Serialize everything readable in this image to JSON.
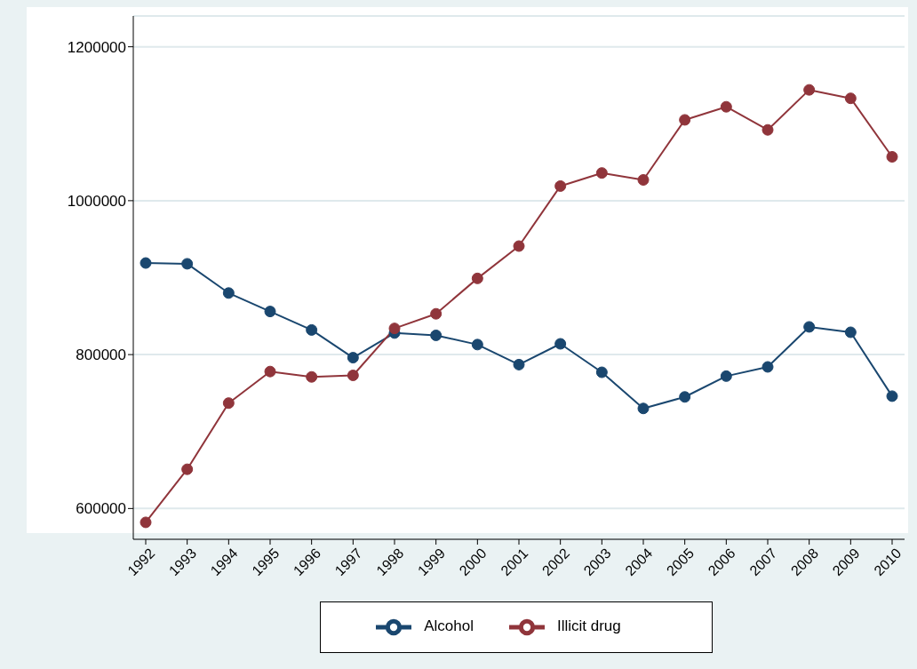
{
  "chart_data": {
    "type": "line",
    "x": [
      1992,
      1993,
      1994,
      1995,
      1996,
      1997,
      1998,
      1999,
      2000,
      2001,
      2002,
      2003,
      2004,
      2005,
      2006,
      2007,
      2008,
      2009,
      2010
    ],
    "series": [
      {
        "name": "Alcohol",
        "color": "#1a476f",
        "values": [
          919000,
          918000,
          880000,
          856000,
          832000,
          796000,
          828000,
          825000,
          813000,
          787000,
          814000,
          777000,
          730000,
          745000,
          772000,
          784000,
          836000,
          829000,
          746000
        ]
      },
      {
        "name": "Illicit drug",
        "color": "#90353b",
        "values": [
          582000,
          651000,
          737000,
          778000,
          771000,
          773000,
          834000,
          853000,
          899000,
          941000,
          1019000,
          1036000,
          1027000,
          1105000,
          1122000,
          1092000,
          1144000,
          1133000,
          1057000
        ]
      }
    ],
    "xlim": [
      1991.7,
      2010.3
    ],
    "xticks": [
      1992,
      1993,
      1994,
      1995,
      1996,
      1997,
      1998,
      1999,
      2000,
      2001,
      2002,
      2003,
      2004,
      2005,
      2006,
      2007,
      2008,
      2009,
      2010
    ],
    "ylim": [
      560000,
      1240000
    ],
    "yticks": [
      600000,
      800000,
      1000000,
      1200000
    ],
    "grid": "y",
    "legend": "bottom",
    "marker": "circle",
    "line_style": "solid"
  }
}
